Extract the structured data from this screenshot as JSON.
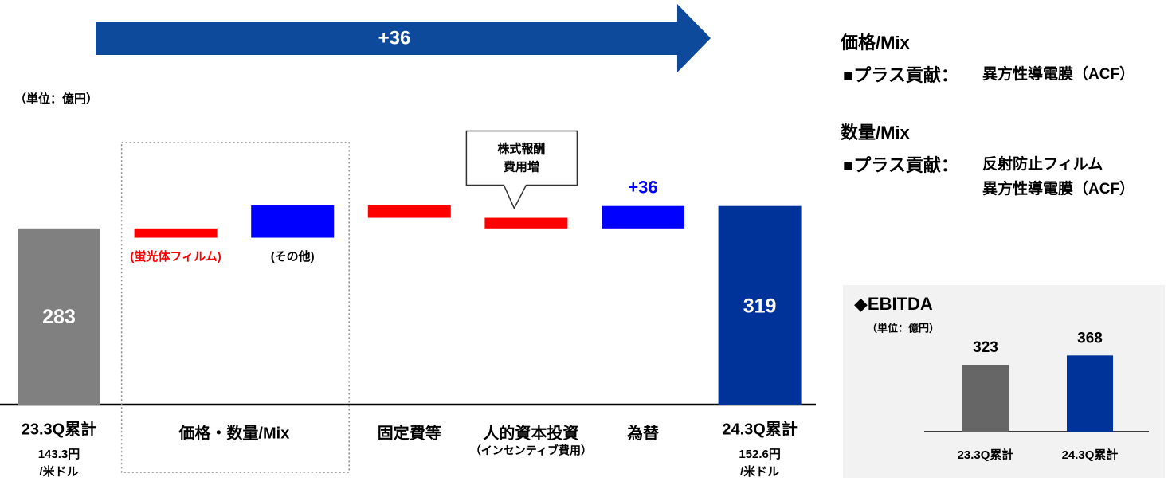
{
  "chart_data": [
    {
      "type": "waterfall",
      "unit": "（単位：億円）",
      "arrow_label": "+36",
      "ylim": [
        0,
        650
      ],
      "colors": {
        "start": "#808080",
        "end": "#003399",
        "increase": "#0000ff",
        "decrease": "#ff0000",
        "arrow": "#0e4a9c"
      },
      "start": {
        "category": "23.3Q累計",
        "value": 283,
        "rate": [
          "143.3円",
          "/米ドル"
        ]
      },
      "steps": [
        {
          "category": "価格・数量/Mix",
          "parts": [
            {
              "sublabel": "(蛍光体フィルム)",
              "value": -15
            },
            {
              "sublabel": "(その他)",
              "value": 52
            }
          ]
        },
        {
          "category": "固定費等",
          "parts": [
            {
              "value": -20
            }
          ]
        },
        {
          "category": "人的資本投資",
          "category_note": "（インセンティブ費用）",
          "parts": [
            {
              "value": -17,
              "callout": [
                "株式報酬",
                "費用増"
              ]
            }
          ]
        },
        {
          "category": "為替",
          "parts": [
            {
              "value": 36,
              "value_label": "+36"
            }
          ]
        }
      ],
      "end": {
        "category": "24.3Q累計",
        "value": 319,
        "rate": [
          "152.6円",
          "/米ドル"
        ]
      }
    },
    {
      "type": "bar",
      "title": "◆EBITDA",
      "unit": "（単位：億円）",
      "categories": [
        "23.3Q累計",
        "24.3Q累計"
      ],
      "values": [
        323,
        368
      ],
      "colors": [
        "#666666",
        "#003399"
      ],
      "ylim": [
        0,
        400
      ]
    }
  ],
  "notes": [
    {
      "title": "価格/Mix",
      "head": "■プラス貢献：",
      "items": [
        "異方性導電膜（ACF）"
      ]
    },
    {
      "title": "数量/Mix",
      "head": "■プラス貢献：",
      "items": [
        "反射防止フィルム",
        "異方性導電膜（ACF）"
      ]
    }
  ]
}
